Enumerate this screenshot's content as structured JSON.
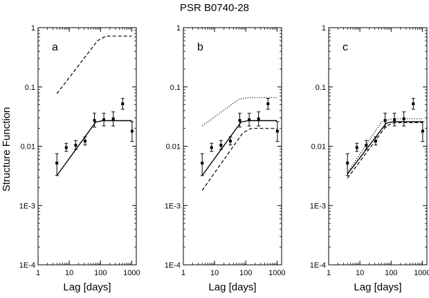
{
  "title": "PSR B0740-28",
  "ylabel": "Structure Function",
  "chart_data": [
    {
      "type": "scatter",
      "panel_label": "a",
      "title": "PSR B0740-28",
      "xlabel": "Lag [days]",
      "ylabel": "Structure Function",
      "xscale": "log",
      "yscale": "log",
      "xlim": [
        1,
        1400
      ],
      "ylim": [
        0.0001,
        1
      ],
      "xticks": [
        "1",
        "10",
        "100",
        "1000"
      ],
      "yticks": [
        "1E-4",
        "1E-3",
        "0.01",
        "0.1",
        "1"
      ],
      "points": [
        {
          "x": 4,
          "y": 0.0052,
          "ylo": 0.0032,
          "yhi": 0.0075
        },
        {
          "x": 8,
          "y": 0.0095,
          "ylo": 0.0082,
          "yhi": 0.0112
        },
        {
          "x": 16,
          "y": 0.0104,
          "ylo": 0.0088,
          "yhi": 0.0125
        },
        {
          "x": 32,
          "y": 0.0122,
          "ylo": 0.0105,
          "yhi": 0.0144
        },
        {
          "x": 64,
          "y": 0.0272,
          "ylo": 0.021,
          "yhi": 0.036
        },
        {
          "x": 128,
          "y": 0.028,
          "ylo": 0.022,
          "yhi": 0.036
        },
        {
          "x": 256,
          "y": 0.029,
          "ylo": 0.022,
          "yhi": 0.038
        },
        {
          "x": 512,
          "y": 0.052,
          "ylo": 0.042,
          "yhi": 0.064
        },
        {
          "x": 1024,
          "y": 0.018,
          "ylo": 0.012,
          "yhi": 0.026
        }
      ],
      "series": [
        {
          "style": "solid",
          "x": [
            4,
            70,
            120,
            1000
          ],
          "y": [
            0.0032,
            0.0255,
            0.027,
            0.027
          ]
        },
        {
          "style": "dashed",
          "x": [
            4,
            80,
            150,
            1000
          ],
          "y": [
            0.077,
            0.6,
            0.72,
            0.72
          ]
        }
      ]
    },
    {
      "type": "scatter",
      "panel_label": "b",
      "xlabel": "Lag [days]",
      "xscale": "log",
      "yscale": "log",
      "xlim": [
        1,
        1400
      ],
      "ylim": [
        0.0001,
        1
      ],
      "xticks": [
        "1",
        "10",
        "100",
        "1000"
      ],
      "yticks": [
        "1E-4",
        "1E-3",
        "0.01",
        "0.1",
        "1"
      ],
      "points": [
        {
          "x": 4,
          "y": 0.0052,
          "ylo": 0.0032,
          "yhi": 0.0075
        },
        {
          "x": 8,
          "y": 0.0095,
          "ylo": 0.0082,
          "yhi": 0.0112
        },
        {
          "x": 16,
          "y": 0.0104,
          "ylo": 0.0088,
          "yhi": 0.0125
        },
        {
          "x": 32,
          "y": 0.0122,
          "ylo": 0.0105,
          "yhi": 0.0144
        },
        {
          "x": 64,
          "y": 0.0272,
          "ylo": 0.021,
          "yhi": 0.036
        },
        {
          "x": 128,
          "y": 0.028,
          "ylo": 0.022,
          "yhi": 0.036
        },
        {
          "x": 256,
          "y": 0.029,
          "ylo": 0.022,
          "yhi": 0.038
        },
        {
          "x": 512,
          "y": 0.052,
          "ylo": 0.042,
          "yhi": 0.064
        },
        {
          "x": 1024,
          "y": 0.018,
          "ylo": 0.012,
          "yhi": 0.026
        }
      ],
      "series": [
        {
          "style": "solid",
          "x": [
            4,
            70,
            120,
            1000
          ],
          "y": [
            0.0032,
            0.0255,
            0.027,
            0.027
          ]
        },
        {
          "style": "dashed",
          "x": [
            4,
            80,
            150,
            1000
          ],
          "y": [
            0.0018,
            0.0168,
            0.02,
            0.02
          ]
        },
        {
          "style": "dotted",
          "x": [
            4,
            60,
            120,
            1000
          ],
          "y": [
            0.022,
            0.062,
            0.066,
            0.066
          ]
        }
      ]
    },
    {
      "type": "scatter",
      "panel_label": "c",
      "xlabel": "Lag [days]",
      "xscale": "log",
      "yscale": "log",
      "xlim": [
        1,
        1400
      ],
      "ylim": [
        0.0001,
        1
      ],
      "xticks": [
        "1",
        "10",
        "100",
        "1000"
      ],
      "yticks": [
        "1E-4",
        "1E-3",
        "0.01",
        "0.1",
        "1"
      ],
      "points": [
        {
          "x": 4,
          "y": 0.0052,
          "ylo": 0.0032,
          "yhi": 0.0075
        },
        {
          "x": 8,
          "y": 0.0095,
          "ylo": 0.0082,
          "yhi": 0.0112
        },
        {
          "x": 16,
          "y": 0.0104,
          "ylo": 0.0088,
          "yhi": 0.0125
        },
        {
          "x": 32,
          "y": 0.0122,
          "ylo": 0.0105,
          "yhi": 0.0144
        },
        {
          "x": 64,
          "y": 0.0272,
          "ylo": 0.021,
          "yhi": 0.036
        },
        {
          "x": 128,
          "y": 0.028,
          "ylo": 0.022,
          "yhi": 0.036
        },
        {
          "x": 256,
          "y": 0.029,
          "ylo": 0.022,
          "yhi": 0.038
        },
        {
          "x": 512,
          "y": 0.052,
          "ylo": 0.042,
          "yhi": 0.064
        },
        {
          "x": 1024,
          "y": 0.018,
          "ylo": 0.012,
          "yhi": 0.026
        }
      ],
      "series": [
        {
          "style": "solid",
          "x": [
            4,
            70,
            120,
            1000
          ],
          "y": [
            0.0034,
            0.0245,
            0.026,
            0.026
          ]
        },
        {
          "style": "dashed",
          "x": [
            4,
            70,
            130,
            1000
          ],
          "y": [
            0.0029,
            0.022,
            0.025,
            0.025
          ]
        },
        {
          "style": "dotted",
          "x": [
            4,
            50,
            110,
            1000
          ],
          "y": [
            0.0036,
            0.026,
            0.029,
            0.029
          ]
        }
      ]
    }
  ]
}
